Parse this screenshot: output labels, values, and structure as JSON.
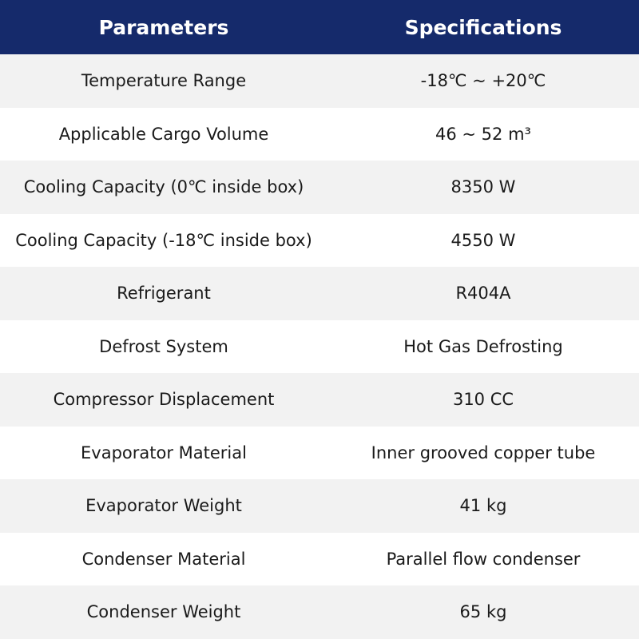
{
  "table": {
    "headers": [
      "Parameters",
      "Specifications"
    ],
    "rows": [
      [
        "Temperature Range",
        "-18℃ ~ +20℃"
      ],
      [
        "Applicable Cargo Volume",
        "46 ~ 52 m³"
      ],
      [
        "Cooling Capacity (0℃ inside box)",
        "8350 W"
      ],
      [
        "Cooling Capacity (-18℃ inside box)",
        "4550 W"
      ],
      [
        "Refrigerant",
        "R404A"
      ],
      [
        "Defrost System",
        "Hot Gas Defrosting"
      ],
      [
        "Compressor Displacement",
        "310 CC"
      ],
      [
        "Evaporator Material",
        "Inner grooved copper tube"
      ],
      [
        "Evaporator Weight",
        "41 kg"
      ],
      [
        "Condenser Material",
        "Parallel flow condenser"
      ],
      [
        "Condenser Weight",
        "65 kg"
      ]
    ]
  }
}
